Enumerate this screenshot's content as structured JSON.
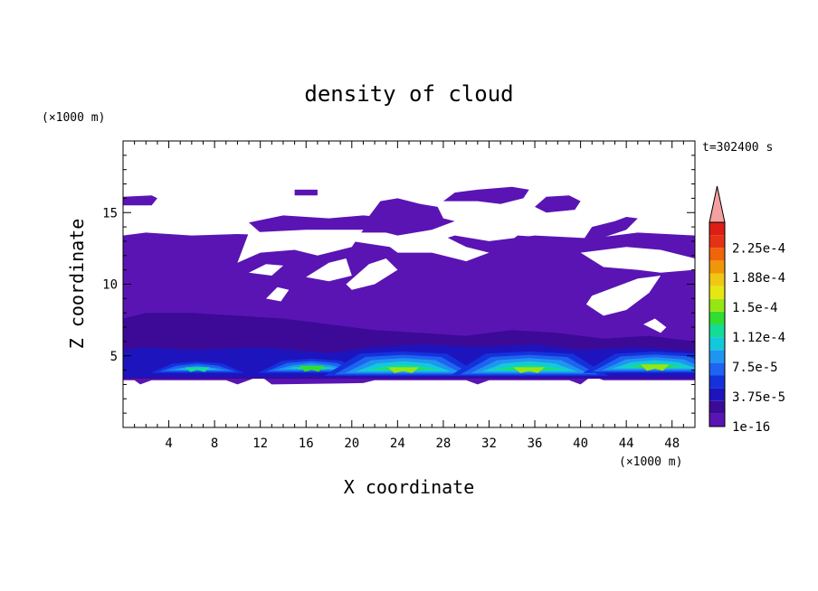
{
  "chart_data": {
    "type": "heatmap",
    "title": "density of cloud",
    "xlabel": "X coordinate",
    "ylabel": "Z coordinate",
    "x_unit": "(×1000 m)",
    "y_unit": "(×1000 m)",
    "time_label": "t=302400 s",
    "xlim": [
      0,
      50
    ],
    "ylim": [
      0,
      20
    ],
    "x_ticks": [
      4,
      8,
      12,
      16,
      20,
      24,
      28,
      32,
      36,
      40,
      44,
      48
    ],
    "x_tick_labels": [
      "4",
      "8",
      "12",
      "16",
      "20",
      "24",
      "28",
      "32",
      "36",
      "40",
      "44",
      "48"
    ],
    "y_ticks": [
      5,
      10,
      15
    ],
    "y_tick_labels": [
      "5",
      "10",
      "15"
    ],
    "colorbar": {
      "levels": [
        "1e-16",
        "3.75e-5",
        "7.5e-5",
        "1.12e-4",
        "1.5e-4",
        "1.88e-4",
        "2.25e-4"
      ],
      "colors": [
        "#5a14b4",
        "#3c0a96",
        "#1e14be",
        "#1432dc",
        "#1e64f0",
        "#1e96f0",
        "#14c8dc",
        "#14dc96",
        "#32dc32",
        "#96e614",
        "#e6e614",
        "#f0c814",
        "#f0960a",
        "#f0640a",
        "#e63214",
        "#dc1e14",
        "#f4a0a0"
      ],
      "extend": "max"
    },
    "regions": {
      "cloud_cover_color": "#5a14b4",
      "cloud_base_z": 3.2,
      "cloud_top_z": 13.5,
      "upper_patches_z": [
        15,
        17
      ],
      "cores": [
        {
          "x_center": 6.5,
          "z_base": 3.8,
          "z_top": 4.6,
          "peak": "7.5e-5"
        },
        {
          "x_center": 16.5,
          "z_base": 3.8,
          "z_top": 4.8,
          "peak": "1.12e-4"
        },
        {
          "x_center": 24.5,
          "z_base": 3.6,
          "z_top": 5.3,
          "peak": "1.5e-4"
        },
        {
          "x_center": 35.5,
          "z_base": 3.6,
          "z_top": 5.3,
          "peak": "1.5e-4"
        },
        {
          "x_center": 46.5,
          "z_base": 3.8,
          "z_top": 5.3,
          "peak": "1.5e-4"
        }
      ]
    }
  }
}
